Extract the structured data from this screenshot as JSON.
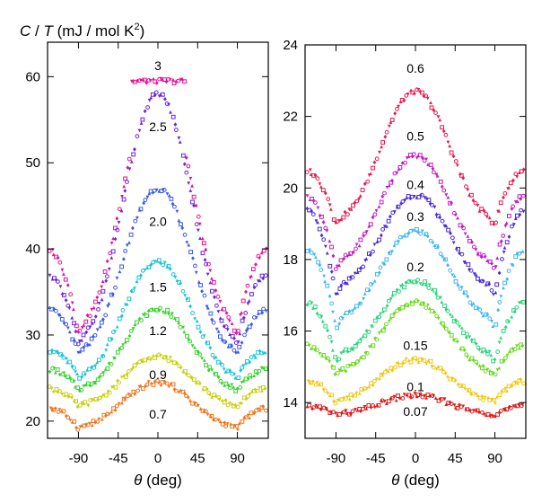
{
  "chart_data": [
    {
      "type": "scatter",
      "panel": "left",
      "ylabel_parts": {
        "c": "C",
        "slash": " / ",
        "t": "T",
        "unit": " (mJ / mol K",
        "sup": "2",
        "close": ")"
      },
      "xlabel_parts": {
        "symbol": "θ",
        "unit": " (deg)"
      },
      "xlim": [
        -125,
        125
      ],
      "ylim": [
        18,
        64
      ],
      "xticks": [
        -90,
        -45,
        0,
        45,
        90
      ],
      "xtick_labels": [
        "-90",
        "-45",
        "0",
        "45",
        "90"
      ],
      "yticks": [
        20,
        30,
        40,
        50,
        60
      ],
      "ytick_labels": [
        "20",
        "30",
        "40",
        "50",
        "60"
      ],
      "series": [
        {
          "name": "3",
          "color": "#e8109a",
          "min": 31.5,
          "mid": 40,
          "peak": 59.5,
          "flat": true,
          "label_y": 61.3
        },
        {
          "name": "2.5",
          "color": "#6a24e0",
          "min": 30,
          "mid": 37,
          "peak": 58,
          "flat": false,
          "label_y": 54.2
        },
        {
          "name": "2.0",
          "color": "#3b5be8",
          "min": 28.5,
          "mid": 33,
          "peak": 47,
          "flat": false,
          "label_y": 43.2
        },
        {
          "name": "1.5",
          "color": "#19c4d6",
          "min": 25.5,
          "mid": 28.2,
          "peak": 38.5,
          "flat": false,
          "label_y": 35.6
        },
        {
          "name": "1.2",
          "color": "#36d42e",
          "min": 24,
          "mid": 26,
          "peak": 33,
          "flat": false,
          "label_y": 30.5
        },
        {
          "name": "0.9",
          "color": "#c7d20e",
          "min": 22,
          "mid": 23.8,
          "peak": 27.5,
          "flat": false,
          "label_y": 25.4
        },
        {
          "name": "0.7",
          "color": "#f07418",
          "min": 19.5,
          "mid": 21.5,
          "peak": 24.5,
          "flat": false,
          "label_y": 20.8
        }
      ]
    },
    {
      "type": "scatter",
      "panel": "right",
      "xlabel_parts": {
        "symbol": "θ",
        "unit": " (deg)"
      },
      "xlim": [
        -125,
        125
      ],
      "ylim": [
        13,
        24
      ],
      "xticks": [
        -90,
        -45,
        0,
        45,
        90
      ],
      "xtick_labels": [
        "-90",
        "-45",
        "0",
        "45",
        "90"
      ],
      "yticks": [
        14,
        16,
        18,
        20,
        22,
        24
      ],
      "ytick_labels": [
        "14",
        "16",
        "18",
        "20",
        "22",
        "24"
      ],
      "series": [
        {
          "name": "0.6",
          "color": "#e81a4e",
          "min": 19.2,
          "mid": 20.5,
          "peak": 22.7,
          "label_y": 23.35
        },
        {
          "name": "0.5",
          "color": "#c21cbf",
          "min": 18.0,
          "mid": 19.8,
          "peak": 20.9,
          "label_y": 21.45
        },
        {
          "name": "0.4",
          "color": "#4a2ad6",
          "min": 17.3,
          "mid": 19.4,
          "peak": 19.8,
          "label_y": 20.1
        },
        {
          "name": "0.3",
          "color": "#3fb8ee",
          "min": 16.4,
          "mid": 18.3,
          "peak": 18.8,
          "label_y": 19.2
        },
        {
          "name": "0.2",
          "color": "#28d67a",
          "min": 15.4,
          "mid": 16.8,
          "peak": 17.4,
          "label_y": 17.8
        },
        {
          "name": "0.15",
          "color": "#6adb1e",
          "min": 14.9,
          "mid": 15.6,
          "peak": 16.8,
          "label_y": 15.6
        },
        {
          "name": "0.1",
          "color": "#f0c814",
          "min": 14.1,
          "mid": 14.6,
          "peak": 15.2,
          "label_y": 14.45
        },
        {
          "name": "0.07",
          "color": "#e01818",
          "min": 13.7,
          "mid": 13.9,
          "peak": 14.2,
          "label_y": 13.75
        }
      ]
    }
  ]
}
